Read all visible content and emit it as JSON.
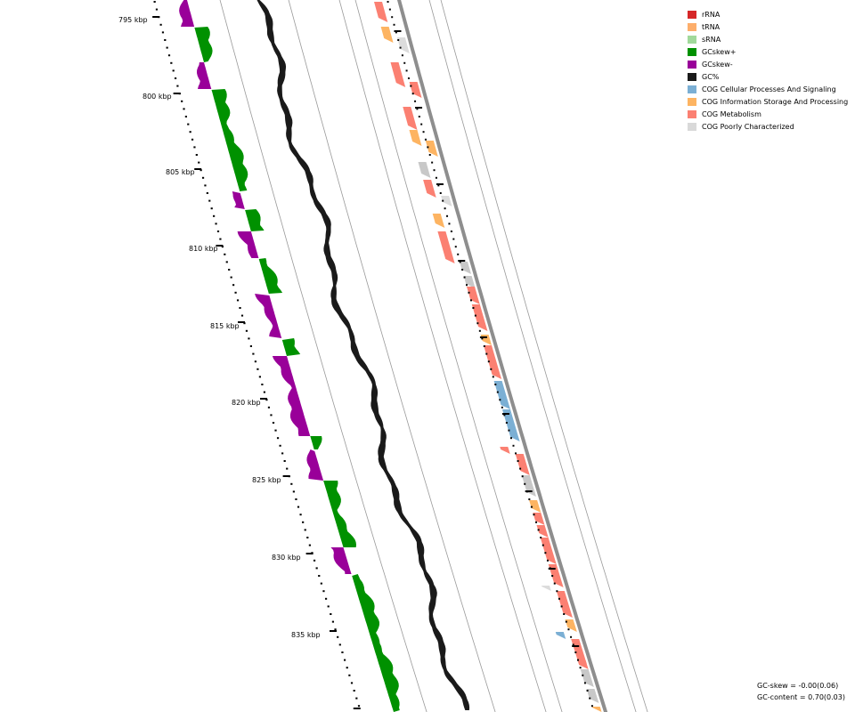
{
  "scale": {
    "labels": [
      "795 kbp",
      "800 kbp",
      "805 kbp",
      "810 kbp",
      "815 kbp",
      "820 kbp",
      "825 kbp",
      "830 kbp",
      "835 kbp"
    ]
  },
  "legend": [
    {
      "label": "rRNA",
      "color": "#d62728"
    },
    {
      "label": "tRNA",
      "color": "#fdae6b"
    },
    {
      "label": "sRNA",
      "color": "#a1d99b"
    },
    {
      "label": "GCskew+",
      "color": "#009100"
    },
    {
      "label": "GCskew-",
      "color": "#990099"
    },
    {
      "label": "GC%",
      "color": "#1a1a1a"
    },
    {
      "label": "COG Cellular Processes And Signaling",
      "color": "#7bafd4"
    },
    {
      "label": "COG Information Storage And Processing",
      "color": "#fdb462"
    },
    {
      "label": "COG Metabolism",
      "color": "#fb8072"
    },
    {
      "label": "COG Poorly Characterized",
      "color": "#d9d9d9"
    }
  ],
  "stats": {
    "gc_skew": "GC-skew = -0.00(0.06)",
    "gc_content": "GC-content = 0.70(0.03)"
  }
}
